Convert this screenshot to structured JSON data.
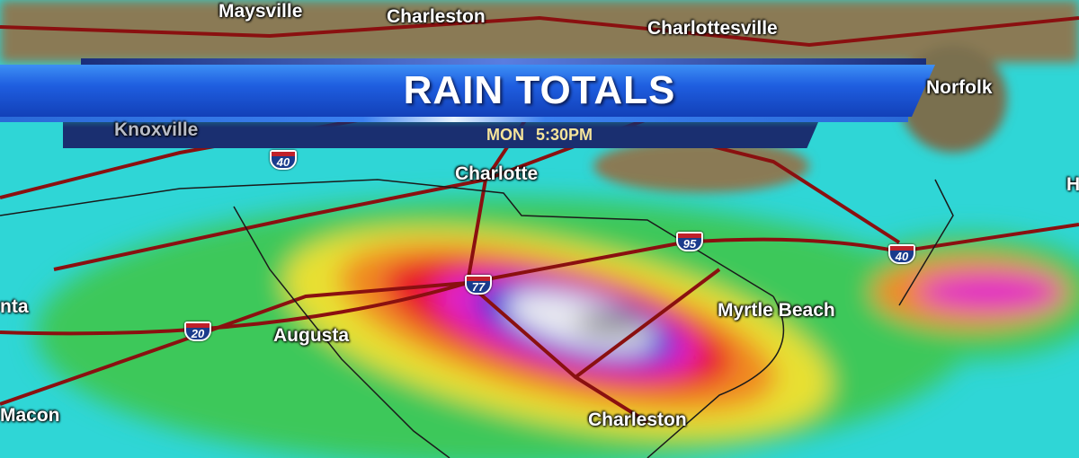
{
  "banner": {
    "title": "RAIN TOTALS",
    "subtitle": "MON  5:30PM"
  },
  "cities": {
    "maysville": "Maysville",
    "charleston_wv": "Charleston",
    "charlottesville": "Charlottesville",
    "norfolk": "Norfolk",
    "knoxville": "Knoxville",
    "charlotte": "Charlotte",
    "myrtle_beach": "Myrtle Beach",
    "augusta": "Augusta",
    "charleston_sc": "Charleston",
    "macon": "Macon",
    "atlanta_partial": "nta",
    "hatteras_partial": "H"
  },
  "interstates": [
    "40",
    "95",
    "40",
    "77",
    "20"
  ],
  "colors": {
    "rain_light": "#2fd6d6",
    "rain_green": "#3cc85a",
    "rain_yellow": "#e8e030",
    "rain_orange": "#f08a20",
    "rain_red": "#e8182a",
    "rain_magenta": "#e020c8",
    "rain_blue": "#2830d8",
    "rain_white": "#e8e8f0",
    "rain_gray": "#8a8a90",
    "land": "#8a7a55",
    "roads": "#8a1010",
    "banner_blue": "#1f5ee0",
    "subtitle_text": "#f6e49a"
  }
}
